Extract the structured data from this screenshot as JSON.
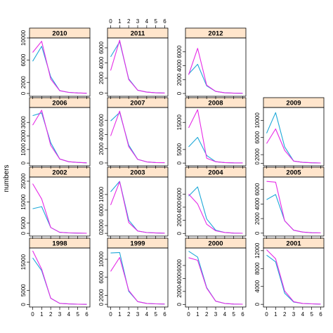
{
  "colors": {
    "s1": "#1ea8d8",
    "s2": "#e62ae6",
    "strip": "#ffe5cc"
  },
  "chart_data": {
    "type": "line",
    "ylabel": "numbers",
    "x_ticks": [
      0,
      1,
      2,
      3,
      4,
      5,
      6
    ],
    "panels": [
      {
        "title": "1998",
        "row": 0,
        "col": 0,
        "ylim": [
          -900,
          20000
        ],
        "yticks": [
          0,
          5000,
          15000
        ],
        "series": [
          {
            "x": [
              0,
              1,
              2,
              3,
              4,
              5,
              6
            ],
            "y": [
              16500,
              12000,
              2200,
              400,
              200,
              100,
              50
            ]
          },
          {
            "x": [
              0,
              1,
              2,
              3,
              4,
              5,
              6
            ],
            "y": [
              19000,
              12500,
              2200,
              400,
              200,
              100,
              50
            ]
          }
        ]
      },
      {
        "title": "1999",
        "row": 0,
        "col": 1,
        "ylim": [
          -600,
          12500
        ],
        "yticks": [
          0,
          2000,
          6000,
          10000
        ],
        "series": [
          {
            "x": [
              0,
              1,
              2,
              3,
              4,
              5,
              6
            ],
            "y": [
              11400,
              11500,
              2900,
              600,
              200,
              100,
              50
            ]
          },
          {
            "x": [
              0,
              1,
              2,
              3,
              4,
              5,
              6
            ],
            "y": [
              7300,
              10400,
              3100,
              600,
              200,
              100,
              50
            ]
          }
        ]
      },
      {
        "title": "2000",
        "row": 0,
        "col": 2,
        "ylim": [
          -400,
          8700
        ],
        "yticks": [
          0,
          2000,
          4000,
          6000
        ],
        "series": [
          {
            "x": [
              0,
              1,
              2,
              3,
              4,
              5,
              6
            ],
            "y": [
              8200,
              7300,
              2600,
              500,
              150,
              50,
              30
            ]
          },
          {
            "x": [
              0,
              1,
              2,
              3,
              4,
              5,
              6
            ],
            "y": [
              7200,
              6800,
              2500,
              500,
              150,
              50,
              30
            ]
          }
        ]
      },
      {
        "title": "2001",
        "row": 0,
        "col": 3,
        "ylim": [
          -600,
          12600
        ],
        "yticks": [
          0,
          4000,
          8000,
          12000
        ],
        "series": [
          {
            "x": [
              0,
              1,
              2,
              3,
              4,
              5,
              6
            ],
            "y": [
              11000,
              9500,
              2500,
              500,
              200,
              100,
              50
            ]
          },
          {
            "x": [
              0,
              1,
              2,
              3,
              4,
              5,
              6
            ],
            "y": [
              12200,
              10200,
              3000,
              600,
              200,
              100,
              50
            ]
          }
        ]
      },
      {
        "title": "2002",
        "row": 1,
        "col": 0,
        "ylim": [
          -1300,
          27000
        ],
        "yticks": [
          0,
          5000,
          15000,
          25000
        ],
        "series": [
          {
            "x": [
              0,
              1,
              2,
              3,
              4,
              5,
              6
            ],
            "y": [
              11800,
              12800,
              2800,
              500,
              200,
              100,
              50
            ]
          },
          {
            "x": [
              0,
              1,
              2,
              3,
              4,
              5,
              6
            ],
            "y": [
              23800,
              16500,
              2800,
              500,
              200,
              100,
              50
            ]
          }
        ]
      },
      {
        "title": "2003",
        "row": 1,
        "col": 1,
        "ylim": [
          -700,
          14500
        ],
        "yticks": [
          0,
          2000,
          6000,
          10000
        ],
        "series": [
          {
            "x": [
              0,
              1,
              2,
              3,
              4,
              5,
              6
            ],
            "y": [
              10700,
              13400,
              3400,
              600,
              200,
              100,
              50
            ]
          },
          {
            "x": [
              0,
              1,
              2,
              3,
              4,
              5,
              6
            ],
            "y": [
              7300,
              13300,
              2800,
              600,
              200,
              100,
              50
            ]
          }
        ]
      },
      {
        "title": "2004",
        "row": 1,
        "col": 2,
        "ylim": [
          -400,
          8600
        ],
        "yticks": [
          0,
          2000,
          4000,
          6000
        ],
        "series": [
          {
            "x": [
              0,
              1,
              2,
              3,
              4,
              5,
              6
            ],
            "y": [
              5700,
              7100,
              2200,
              500,
              150,
              50,
              30
            ]
          },
          {
            "x": [
              0,
              1,
              2,
              3,
              4,
              5,
              6
            ],
            "y": [
              6000,
              4500,
              1400,
              400,
              150,
              50,
              30
            ]
          }
        ]
      },
      {
        "title": "2005",
        "row": 1,
        "col": 3,
        "ylim": [
          -400,
          7700
        ],
        "yticks": [
          0,
          2000,
          4000,
          6000
        ],
        "series": [
          {
            "x": [
              0,
              1,
              2,
              3,
              4,
              5,
              6
            ],
            "y": [
              4600,
              5300,
              1700,
              400,
              150,
              50,
              30
            ]
          },
          {
            "x": [
              0,
              1,
              2,
              3,
              4,
              5,
              6
            ],
            "y": [
              7100,
              7000,
              1700,
              400,
              150,
              50,
              30
            ]
          }
        ]
      },
      {
        "title": "2006",
        "row": 2,
        "col": 0,
        "ylim": [
          -200,
          4100
        ],
        "yticks": [
          0,
          1000,
          2000,
          3000
        ],
        "series": [
          {
            "x": [
              0,
              1,
              2,
              3,
              4,
              5,
              6
            ],
            "y": [
              3500,
              3700,
              1500,
              300,
              100,
              50,
              20
            ]
          },
          {
            "x": [
              0,
              1,
              2,
              3,
              4,
              5,
              6
            ],
            "y": [
              2800,
              3900,
              1300,
              300,
              100,
              50,
              20
            ]
          }
        ]
      },
      {
        "title": "2007",
        "row": 2,
        "col": 1,
        "ylim": [
          -400,
          7800
        ],
        "yticks": [
          0,
          2000,
          4000,
          6000
        ],
        "series": [
          {
            "x": [
              0,
              1,
              2,
              3,
              4,
              5,
              6
            ],
            "y": [
              5900,
              7100,
              2500,
              500,
              150,
              50,
              30
            ]
          },
          {
            "x": [
              0,
              1,
              2,
              3,
              4,
              5,
              6
            ],
            "y": [
              3800,
              7300,
              2300,
              500,
              150,
              50,
              30
            ]
          }
        ]
      },
      {
        "title": "2008",
        "row": 2,
        "col": 2,
        "ylim": [
          -1000,
          20500
        ],
        "yticks": [
          0,
          5000,
          15000
        ],
        "series": [
          {
            "x": [
              0,
              1,
              2,
              3,
              4,
              5,
              6
            ],
            "y": [
              6000,
              9500,
              2800,
              500,
              200,
              100,
              50
            ]
          },
          {
            "x": [
              0,
              1,
              2,
              3,
              4,
              5,
              6
            ],
            "y": [
              13000,
              19700,
              1800,
              500,
              200,
              100,
              50
            ]
          }
        ]
      },
      {
        "title": "2009",
        "row": 2,
        "col": 3,
        "ylim": [
          -600,
          13000
        ],
        "yticks": [
          0,
          2000,
          6000,
          10000
        ],
        "series": [
          {
            "x": [
              0,
              1,
              2,
              3,
              4,
              5,
              6
            ],
            "y": [
              7000,
              11800,
              3800,
              500,
              200,
              100,
              50
            ]
          },
          {
            "x": [
              0,
              1,
              2,
              3,
              4,
              5,
              6
            ],
            "y": [
              4600,
              8000,
              3000,
              500,
              200,
              100,
              50
            ]
          }
        ]
      },
      {
        "title": "2010",
        "row": 3,
        "col": 0,
        "ylim": [
          -500,
          10000
        ],
        "yticks": [
          0,
          2000,
          6000,
          10000
        ],
        "series": [
          {
            "x": [
              0,
              1,
              2,
              3,
              4,
              5,
              6
            ],
            "y": [
              5800,
              8500,
              3000,
              500,
              200,
              100,
              50
            ]
          },
          {
            "x": [
              0,
              1,
              2,
              3,
              4,
              5,
              6
            ],
            "y": [
              7400,
              9400,
              2600,
              500,
              200,
              100,
              50
            ]
          }
        ]
      },
      {
        "title": "2011",
        "row": 3,
        "col": 1,
        "ylim": [
          -400,
          7300
        ],
        "yticks": [
          0,
          2000,
          4000,
          6000
        ],
        "series": [
          {
            "x": [
              0,
              1,
              2,
              3,
              4,
              5,
              6
            ],
            "y": [
              4800,
              6800,
              1900,
              400,
              150,
              50,
              30
            ]
          },
          {
            "x": [
              0,
              1,
              2,
              3,
              4,
              5,
              6
            ],
            "y": [
              3000,
              7000,
              1800,
              400,
              150,
              50,
              30
            ]
          }
        ]
      },
      {
        "title": "2012",
        "row": 3,
        "col": 2,
        "ylim": [
          -400,
          8000
        ],
        "yticks": [
          0,
          2000,
          4000,
          6000
        ],
        "series": [
          {
            "x": [
              0,
              1,
              2,
              3,
              4,
              5,
              6
            ],
            "y": [
              2800,
              4200,
              1100,
              300,
              100,
              50,
              20
            ]
          },
          {
            "x": [
              0,
              1,
              2,
              3,
              4,
              5,
              6
            ],
            "y": [
              2700,
              6500,
              1200,
              300,
              100,
              50,
              20
            ]
          }
        ]
      }
    ]
  }
}
